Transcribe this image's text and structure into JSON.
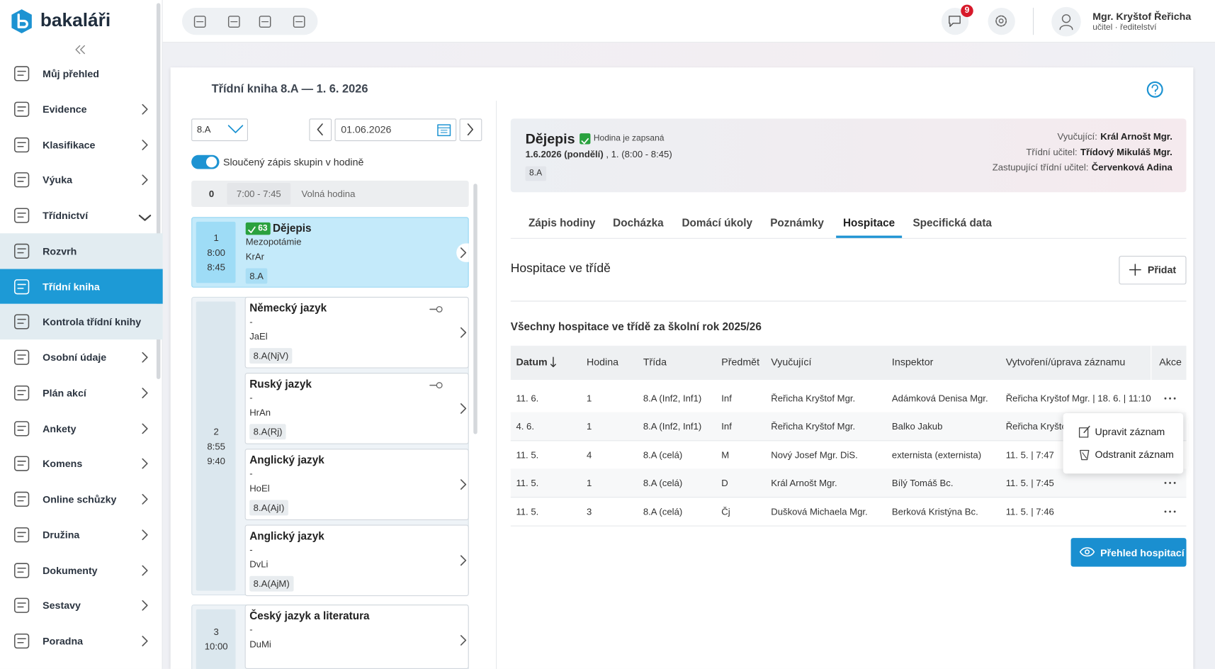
{
  "brand": "bakaláři",
  "notifications": 9,
  "user": {
    "name": "Mgr. Kryštof Řeřicha",
    "role": "učitel · ředitelství"
  },
  "sidebar": {
    "items": [
      {
        "label": "Můj přehled"
      },
      {
        "label": "Evidence",
        "expandable": true
      },
      {
        "label": "Klasifikace",
        "expandable": true
      },
      {
        "label": "Výuka",
        "expandable": true
      },
      {
        "label": "Třídnictví",
        "expandable": true,
        "expanded": true,
        "children": [
          {
            "label": "Rozvrh"
          },
          {
            "label": "Třídní kniha",
            "active": true
          },
          {
            "label": "Kontrola třídní knihy"
          }
        ]
      },
      {
        "label": "Osobní údaje",
        "expandable": true
      },
      {
        "label": "Plán akcí",
        "expandable": true
      },
      {
        "label": "Ankety",
        "expandable": true
      },
      {
        "label": "Komens",
        "expandable": true
      },
      {
        "label": "Online schůzky",
        "expandable": true
      },
      {
        "label": "Družina",
        "expandable": true
      },
      {
        "label": "Dokumenty",
        "expandable": true
      },
      {
        "label": "Sestavy",
        "expandable": true
      },
      {
        "label": "Poradna",
        "expandable": true
      }
    ]
  },
  "page": {
    "title": "Třídní kniha 8.A  —  1. 6. 2026"
  },
  "filters": {
    "class": "8.A",
    "date": "01.06.2026",
    "merge_toggle": {
      "label": "Sloučený zápis skupin v hodině",
      "on": true
    }
  },
  "lessons": [
    {
      "number": 0,
      "time": "7:00 - 7:45",
      "label": "Volná hodina"
    },
    {
      "number": 1,
      "start": "8:00",
      "end": "8:45",
      "selected": true,
      "entries": [
        {
          "subject": "Dějepis",
          "badge": 63,
          "topic": "Mezopotámie",
          "teacher": "KrAr",
          "group": "8.A"
        }
      ]
    },
    {
      "number": 2,
      "start": "8:55",
      "end": "9:40",
      "entries": [
        {
          "subject": "Německý jazyk",
          "topic": "-",
          "teacher": "JaEl",
          "group": "8.A(NjV)",
          "locked": true
        },
        {
          "subject": "Ruský jazyk",
          "topic": "-",
          "teacher": "HrAn",
          "group": "8.A(Rj)",
          "locked": true
        },
        {
          "subject": "Anglický jazyk",
          "topic": "-",
          "teacher": "HoEl",
          "group": "8.A(AjI)"
        },
        {
          "subject": "Anglický jazyk",
          "topic": "-",
          "teacher": "DvLi",
          "group": "8.A(AjM)"
        }
      ]
    },
    {
      "number": 3,
      "start": "10:00",
      "entries": [
        {
          "subject": "Český jazyk a literatura",
          "topic": "-",
          "teacher": "DuMi"
        }
      ]
    }
  ],
  "detail": {
    "subject": "Dějepis",
    "status": "Hodina je zapsaná",
    "date": "1.6.2026 (pondělí)",
    "time": ", 1. (8:00 - 8:45)",
    "class": "8.A",
    "staff": [
      {
        "label": "Vyučující:",
        "value": "Král Arnošt Mgr."
      },
      {
        "label": "Třídní učitel:",
        "value": "Třídový Mikuláš Mgr."
      },
      {
        "label": "Zastupující třídní učitel:",
        "value": "Červenková Adina"
      }
    ]
  },
  "tabs": {
    "items": [
      "Zápis hodiny",
      "Docházka",
      "Domácí úkoly",
      "Poznámky",
      "Hospitace",
      "Specifická data"
    ],
    "active": 4
  },
  "section": {
    "title": "Hospitace ve třídě",
    "add": "Přidat",
    "subtitle": "Všechny hospitace ve třídě za školní rok 2025/26"
  },
  "table": {
    "columns": [
      "Datum",
      "Hodina",
      "Třída",
      "Předmět",
      "Vyučující",
      "Inspektor",
      "Vytvoření/úprava záznamu",
      "Akce"
    ],
    "sort_column": 0,
    "rows": [
      [
        "11. 6.",
        "1",
        "8.A (Inf2, Inf1)",
        "Inf",
        "Řeřicha Kryštof Mgr.",
        "Adámková Denisa Mgr.",
        "Řeřicha Kryštof Mgr. | 18. 6. | 11:10"
      ],
      [
        "4. 6.",
        "1",
        "8.A (Inf2, Inf1)",
        "Inf",
        "Řeřicha Kryštof Mgr.",
        "Balko Jakub",
        "Řeřicha Kryštof Mgr."
      ],
      [
        "11. 5.",
        "4",
        "8.A (celá)",
        "M",
        "Nový Josef Mgr. DiS.",
        "externista (externista)",
        "11. 5. | 7:47"
      ],
      [
        "11. 5.",
        "1",
        "8.A (celá)",
        "D",
        "Král Arnošt Mgr.",
        "Bílý Tomáš Bc.",
        "11. 5. | 7:45"
      ],
      [
        "11. 5.",
        "3",
        "8.A (celá)",
        "Čj",
        "Dušková Michaela Mgr.",
        "Berková Kristýna Bc.",
        "11. 5. | 7:46"
      ]
    ]
  },
  "menu": {
    "row": 1,
    "items": [
      "Upravit záznam",
      "Odstranit záznam"
    ]
  },
  "overview_button": "Přehled hospitací"
}
